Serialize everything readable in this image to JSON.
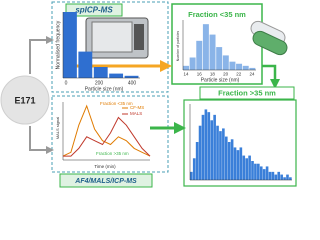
{
  "spicpms": {
    "label": "spICP-MS",
    "y_label": "Normalised frequency",
    "x_label": "Particle size (nm)",
    "x_ticks": [
      "0",
      "200",
      "400"
    ],
    "counts": [
      30,
      12,
      5,
      2,
      1
    ]
  },
  "fraction_small": {
    "title": "Fraction <35 nm",
    "y_label": "Number of particles",
    "x_label": "Particle size (nm)",
    "x_ticks": [
      "14",
      "16",
      "18",
      "20",
      "22",
      "24"
    ],
    "counts": [
      2,
      6,
      14,
      22,
      17,
      11,
      7,
      4,
      3,
      2,
      1
    ],
    "ymax": 24
  },
  "sample": {
    "label": "E171"
  },
  "af4": {
    "label": "AF4/MALS/ICP-MS",
    "x_label": "Time (min)",
    "y_label": "MALS signal",
    "legend": [
      "CF-MS",
      "MALS"
    ],
    "fraction_small": "Fraction <35 nm",
    "fraction_large": "Fraction >35 nm",
    "series": [
      {
        "name": "CF-MS",
        "color": "#e07b00",
        "values": [
          1,
          2,
          9,
          14,
          8,
          5,
          4,
          6,
          5,
          3,
          2,
          1
        ]
      },
      {
        "name": "MALS",
        "color": "#c0392b",
        "values": [
          1,
          1,
          3,
          6,
          5,
          4,
          7,
          11,
          9,
          6,
          3,
          1
        ]
      }
    ],
    "ymax": 15
  },
  "fraction_large": {
    "title": "Fraction >35 nm",
    "counts": [
      3,
      8,
      14,
      20,
      24,
      26,
      25,
      22,
      24,
      20,
      18,
      19,
      16,
      14,
      15,
      12,
      11,
      12,
      9,
      8,
      9,
      7,
      6,
      6,
      5,
      4,
      5,
      3,
      3,
      2,
      3,
      2,
      1,
      2,
      1
    ],
    "ymax": 28
  }
}
